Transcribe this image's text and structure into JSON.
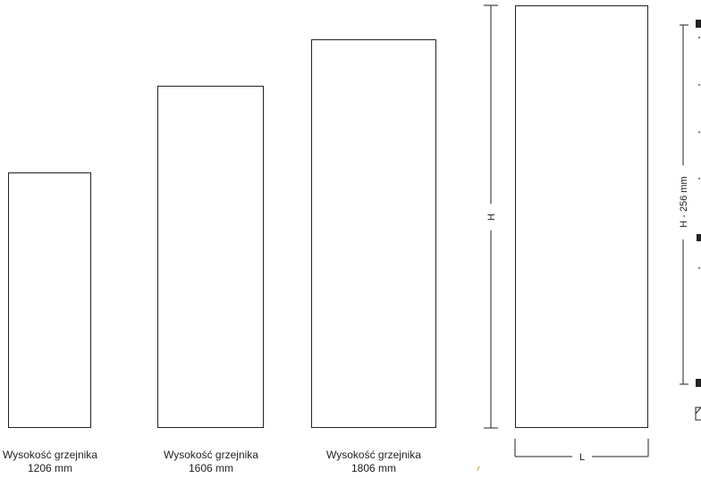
{
  "radiators": [
    {
      "label_line1": "Wysokość grzejnika",
      "label_line2": "1206 mm"
    },
    {
      "label_line1": "Wysokość grzejnika",
      "label_line2": "1606 mm"
    },
    {
      "label_line1": "Wysokość grzejnika",
      "label_line2": "1806 mm"
    }
  ],
  "dimensions": {
    "height_label": "H",
    "width_label": "L",
    "mount_spacing_label": "H - 256 mm"
  }
}
